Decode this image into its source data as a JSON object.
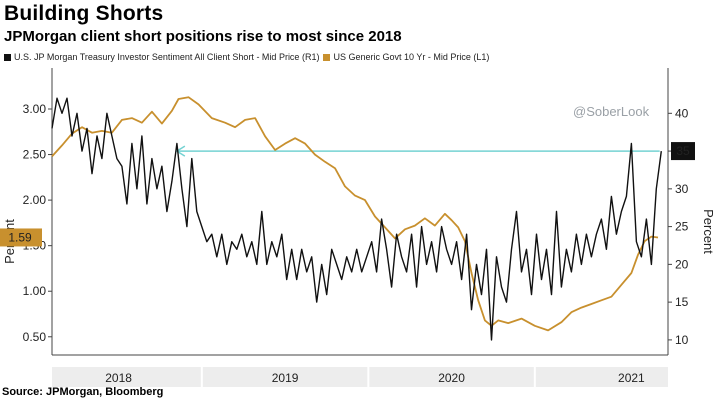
{
  "header": {
    "title": "Building Shorts",
    "subtitle": "JPMorgan client short positions rise to most since 2018"
  },
  "source": "Source: JPMorgan, Bloomberg",
  "watermark": "@SoberLook",
  "colors": {
    "short": "#111111",
    "yield": "#c8902e",
    "reference_line": "#74d2d2",
    "yield_label_bg": "#c8902e",
    "short_label_bg": "#111111"
  },
  "chart_data": {
    "type": "line",
    "legend": [
      {
        "name": "U.S. JP Morgan Treasury Investor Sentiment All Client Short - Mid Price (R1)",
        "color": "#111111",
        "axis": "right"
      },
      {
        "name": "US Generic Govt 10 Yr - Mid Price (L1)",
        "color": "#c8902e",
        "axis": "left"
      }
    ],
    "x_labels": [
      "2018",
      "2019",
      "2020",
      "2021"
    ],
    "x_range": [
      2017.6,
      2021.3
    ],
    "y_left": {
      "label": "Percent",
      "ticks": [
        "3.00",
        "2.50",
        "2.00",
        "1.50",
        "1.00",
        "0.50"
      ],
      "range": [
        0.3,
        3.45
      ]
    },
    "y_right": {
      "label": "Percent",
      "ticks": [
        "40",
        "35",
        "30",
        "25",
        "20",
        "15",
        "10"
      ],
      "range": [
        8,
        46
      ]
    },
    "last_value_labels": {
      "yield": "1.59",
      "short": "35"
    },
    "reference_line": {
      "value": 35,
      "axis": "right",
      "from_x": 2018.35,
      "to_x": 2021.25
    },
    "series": [
      {
        "name": "US Generic Govt 10 Yr - Mid Price (L1)",
        "axis": "left",
        "points": [
          [
            2017.6,
            2.48
          ],
          [
            2017.66,
            2.6
          ],
          [
            2017.72,
            2.73
          ],
          [
            2017.78,
            2.8
          ],
          [
            2017.84,
            2.74
          ],
          [
            2017.9,
            2.76
          ],
          [
            2017.96,
            2.74
          ],
          [
            2018.02,
            2.88
          ],
          [
            2018.08,
            2.9
          ],
          [
            2018.14,
            2.85
          ],
          [
            2018.2,
            2.97
          ],
          [
            2018.26,
            2.84
          ],
          [
            2018.32,
            2.98
          ],
          [
            2018.36,
            3.11
          ],
          [
            2018.42,
            3.13
          ],
          [
            2018.48,
            3.05
          ],
          [
            2018.56,
            2.9
          ],
          [
            2018.64,
            2.85
          ],
          [
            2018.7,
            2.8
          ],
          [
            2018.76,
            2.88
          ],
          [
            2018.82,
            2.9
          ],
          [
            2018.88,
            2.7
          ],
          [
            2018.94,
            2.55
          ],
          [
            2019.0,
            2.62
          ],
          [
            2019.06,
            2.68
          ],
          [
            2019.12,
            2.62
          ],
          [
            2019.18,
            2.5
          ],
          [
            2019.24,
            2.42
          ],
          [
            2019.3,
            2.35
          ],
          [
            2019.36,
            2.15
          ],
          [
            2019.42,
            2.05
          ],
          [
            2019.48,
            2.0
          ],
          [
            2019.54,
            1.82
          ],
          [
            2019.6,
            1.7
          ],
          [
            2019.66,
            1.58
          ],
          [
            2019.72,
            1.68
          ],
          [
            2019.78,
            1.72
          ],
          [
            2019.84,
            1.8
          ],
          [
            2019.9,
            1.72
          ],
          [
            2019.96,
            1.85
          ],
          [
            2020.0,
            1.78
          ],
          [
            2020.04,
            1.7
          ],
          [
            2020.08,
            1.55
          ],
          [
            2020.12,
            1.2
          ],
          [
            2020.16,
            0.9
          ],
          [
            2020.2,
            0.68
          ],
          [
            2020.24,
            0.62
          ],
          [
            2020.28,
            0.68
          ],
          [
            2020.34,
            0.65
          ],
          [
            2020.42,
            0.7
          ],
          [
            2020.5,
            0.62
          ],
          [
            2020.58,
            0.57
          ],
          [
            2020.66,
            0.66
          ],
          [
            2020.72,
            0.77
          ],
          [
            2020.78,
            0.82
          ],
          [
            2020.84,
            0.86
          ],
          [
            2020.9,
            0.9
          ],
          [
            2020.96,
            0.94
          ],
          [
            2021.02,
            1.07
          ],
          [
            2021.08,
            1.2
          ],
          [
            2021.12,
            1.4
          ],
          [
            2021.16,
            1.55
          ],
          [
            2021.2,
            1.6
          ],
          [
            2021.24,
            1.59
          ]
        ]
      },
      {
        "name": "U.S. JP Morgan Treasury Investor Sentiment All Client Short - Mid Price (R1)",
        "axis": "right",
        "points": [
          [
            2017.6,
            38
          ],
          [
            2017.63,
            42
          ],
          [
            2017.66,
            40
          ],
          [
            2017.69,
            42
          ],
          [
            2017.72,
            37
          ],
          [
            2017.75,
            40
          ],
          [
            2017.78,
            35
          ],
          [
            2017.81,
            38
          ],
          [
            2017.84,
            32
          ],
          [
            2017.87,
            37
          ],
          [
            2017.9,
            34
          ],
          [
            2017.93,
            40
          ],
          [
            2017.96,
            37
          ],
          [
            2017.99,
            34
          ],
          [
            2018.02,
            33
          ],
          [
            2018.05,
            28
          ],
          [
            2018.08,
            36
          ],
          [
            2018.11,
            30
          ],
          [
            2018.14,
            37
          ],
          [
            2018.17,
            28
          ],
          [
            2018.2,
            34
          ],
          [
            2018.23,
            30
          ],
          [
            2018.26,
            33
          ],
          [
            2018.29,
            27
          ],
          [
            2018.32,
            31
          ],
          [
            2018.35,
            36
          ],
          [
            2018.38,
            30
          ],
          [
            2018.41,
            25
          ],
          [
            2018.44,
            34
          ],
          [
            2018.47,
            27
          ],
          [
            2018.5,
            25
          ],
          [
            2018.53,
            23
          ],
          [
            2018.56,
            24
          ],
          [
            2018.59,
            21
          ],
          [
            2018.62,
            24
          ],
          [
            2018.65,
            20
          ],
          [
            2018.68,
            23
          ],
          [
            2018.71,
            22
          ],
          [
            2018.74,
            24
          ],
          [
            2018.77,
            21
          ],
          [
            2018.8,
            23
          ],
          [
            2018.83,
            20
          ],
          [
            2018.86,
            27
          ],
          [
            2018.89,
            20
          ],
          [
            2018.92,
            23
          ],
          [
            2018.95,
            21
          ],
          [
            2018.98,
            24
          ],
          [
            2019.01,
            18
          ],
          [
            2019.04,
            22
          ],
          [
            2019.07,
            18
          ],
          [
            2019.1,
            22
          ],
          [
            2019.13,
            19
          ],
          [
            2019.16,
            21
          ],
          [
            2019.19,
            15
          ],
          [
            2019.22,
            20
          ],
          [
            2019.25,
            16
          ],
          [
            2019.28,
            22
          ],
          [
            2019.31,
            20
          ],
          [
            2019.34,
            18
          ],
          [
            2019.37,
            21
          ],
          [
            2019.4,
            19
          ],
          [
            2019.43,
            22
          ],
          [
            2019.46,
            19
          ],
          [
            2019.49,
            21
          ],
          [
            2019.52,
            23
          ],
          [
            2019.55,
            19
          ],
          [
            2019.58,
            26
          ],
          [
            2019.61,
            22
          ],
          [
            2019.64,
            17
          ],
          [
            2019.67,
            24
          ],
          [
            2019.7,
            21
          ],
          [
            2019.73,
            19
          ],
          [
            2019.76,
            24
          ],
          [
            2019.79,
            17
          ],
          [
            2019.82,
            25
          ],
          [
            2019.85,
            20
          ],
          [
            2019.88,
            23
          ],
          [
            2019.91,
            19
          ],
          [
            2019.94,
            25
          ],
          [
            2019.97,
            22
          ],
          [
            2020.0,
            20
          ],
          [
            2020.03,
            23
          ],
          [
            2020.06,
            18
          ],
          [
            2020.09,
            24
          ],
          [
            2020.12,
            14
          ],
          [
            2020.15,
            20
          ],
          [
            2020.18,
            16
          ],
          [
            2020.21,
            22
          ],
          [
            2020.24,
            10
          ],
          [
            2020.27,
            21
          ],
          [
            2020.3,
            17
          ],
          [
            2020.33,
            15
          ],
          [
            2020.36,
            22
          ],
          [
            2020.39,
            27
          ],
          [
            2020.42,
            19
          ],
          [
            2020.45,
            22
          ],
          [
            2020.48,
            16
          ],
          [
            2020.51,
            24
          ],
          [
            2020.54,
            18
          ],
          [
            2020.57,
            22
          ],
          [
            2020.6,
            16
          ],
          [
            2020.63,
            27
          ],
          [
            2020.66,
            17
          ],
          [
            2020.69,
            22
          ],
          [
            2020.72,
            19
          ],
          [
            2020.75,
            24
          ],
          [
            2020.78,
            20
          ],
          [
            2020.81,
            24
          ],
          [
            2020.84,
            21
          ],
          [
            2020.87,
            24
          ],
          [
            2020.9,
            26
          ],
          [
            2020.93,
            22
          ],
          [
            2020.96,
            29
          ],
          [
            2020.99,
            24
          ],
          [
            2021.02,
            27
          ],
          [
            2021.05,
            29
          ],
          [
            2021.08,
            36
          ],
          [
            2021.11,
            23
          ],
          [
            2021.14,
            21
          ],
          [
            2021.17,
            26
          ],
          [
            2021.2,
            20
          ],
          [
            2021.23,
            30
          ],
          [
            2021.26,
            35
          ]
        ]
      }
    ]
  }
}
